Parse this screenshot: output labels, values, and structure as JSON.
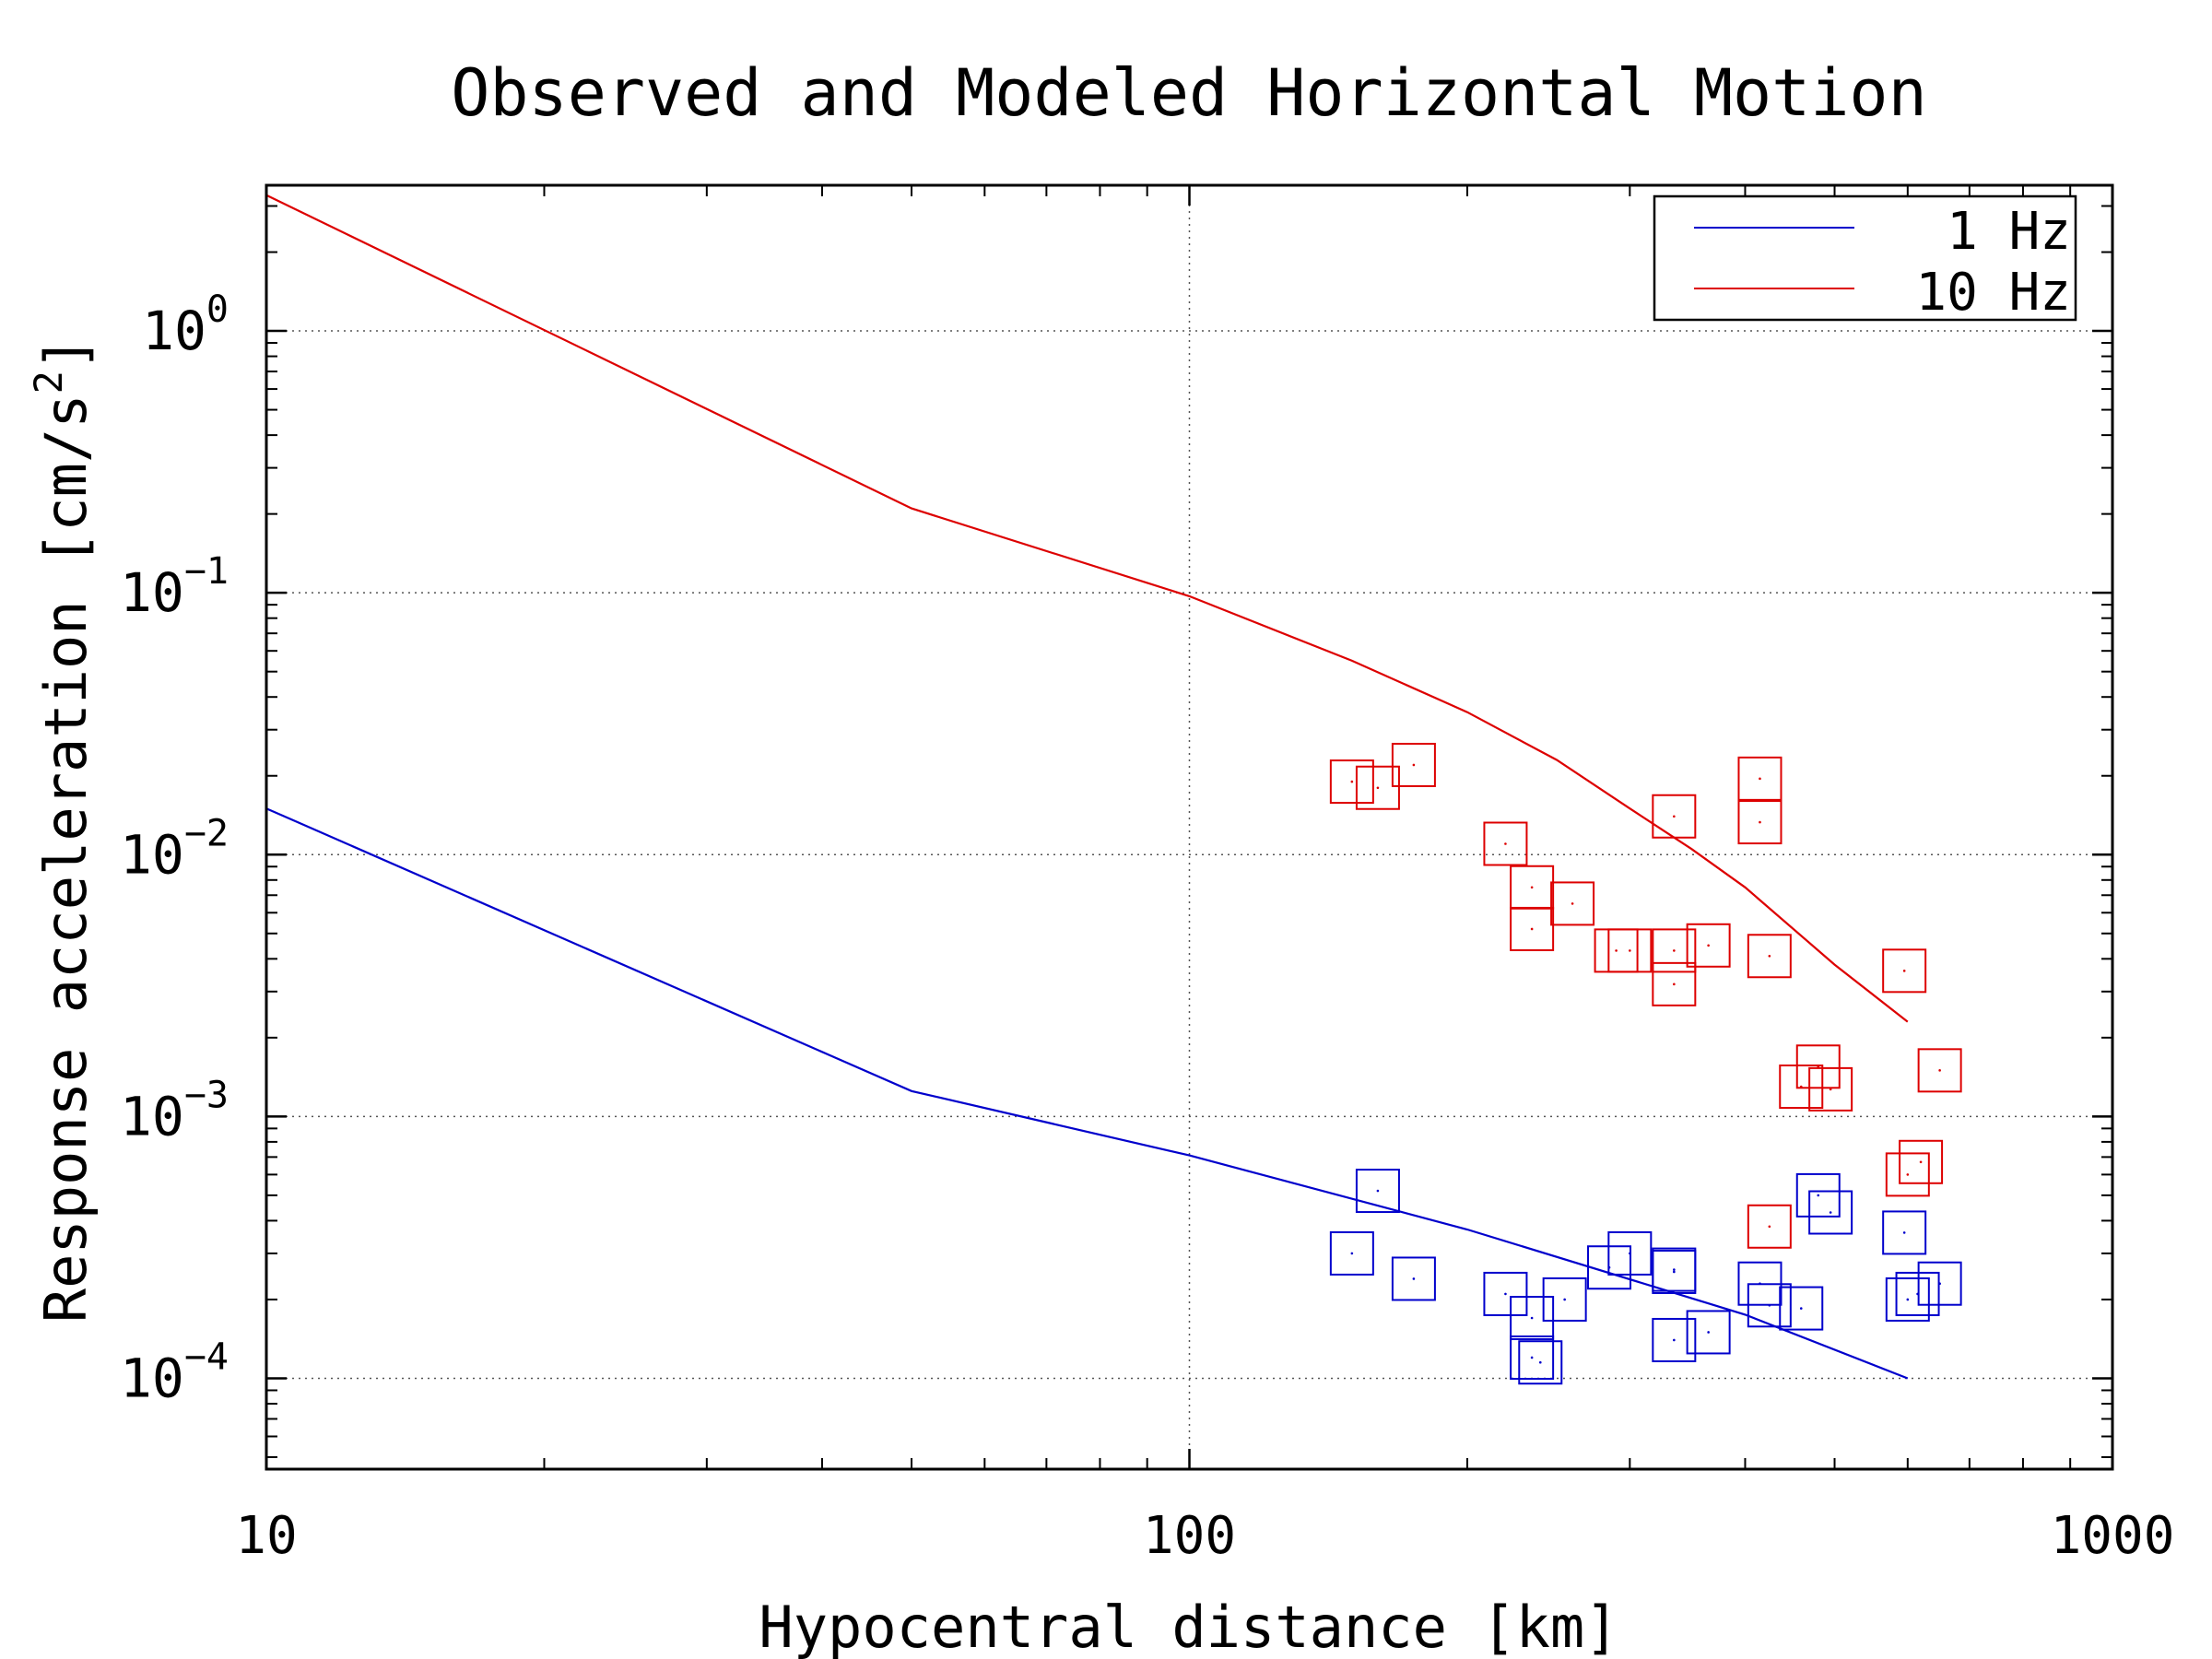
{
  "chart_data": {
    "type": "scatter",
    "title": "Observed and Modeled Horizontal Motion",
    "xlabel": "Hypocentral distance [km]",
    "ylabel": {
      "main": "Response acceleration [cm/s",
      "sup": "2",
      "end": "]"
    },
    "xscale": "log",
    "yscale": "log",
    "xlim": [
      10,
      1000
    ],
    "ylim": [
      4.5e-05,
      3.6
    ],
    "grid": true,
    "legend_position": "top-right",
    "x_ticks": [
      {
        "value": 10,
        "label": "10"
      },
      {
        "value": 100,
        "label": "100"
      },
      {
        "value": 1000,
        "label": "1000"
      }
    ],
    "y_ticks": [
      {
        "value": 1,
        "base": "10",
        "exp": "0"
      },
      {
        "value": 0.1,
        "base": "10",
        "exp": "-1"
      },
      {
        "value": 0.01,
        "base": "10",
        "exp": "-2"
      },
      {
        "value": 0.001,
        "base": "10",
        "exp": "-3"
      },
      {
        "value": 0.0001,
        "base": "10",
        "exp": "-4"
      }
    ],
    "series": [
      {
        "name": "1 Hz",
        "color": "#0000cc",
        "model": {
          "x": [
            10,
            50,
            100,
            200,
            400,
            600
          ],
          "y": [
            0.015,
            0.00125,
            0.00071,
            0.00037,
            0.000175,
            0.0001
          ]
        },
        "observed": {
          "x": [
            150,
            160,
            175,
            220,
            235,
            235,
            240,
            255,
            285,
            300,
            335,
            335,
            335,
            365,
            415,
            425,
            460,
            480,
            495,
            595,
            600,
            615,
            650
          ],
          "y": [
            0.0003,
            0.00052,
            0.00024,
            0.00021,
            0.00017,
            0.00012,
            0.000115,
            0.0002,
            0.000265,
            0.0003,
            0.00026,
            0.000255,
            0.00014,
            0.00015,
            0.00023,
            0.00019,
            0.000185,
            0.0005,
            0.00043,
            0.00036,
            0.0002,
            0.00021,
            0.00023
          ]
        }
      },
      {
        "name": "10 Hz",
        "color": "#dd0000",
        "model": {
          "x": [
            10,
            50,
            100,
            150,
            200,
            250,
            300,
            350,
            400,
            500,
            600
          ],
          "y": [
            3.3,
            0.21,
            0.097,
            0.055,
            0.035,
            0.023,
            0.015,
            0.0105,
            0.0075,
            0.0038,
            0.0023
          ]
        },
        "observed": {
          "x": [
            150,
            160,
            175,
            220,
            235,
            235,
            260,
            290,
            300,
            335,
            335,
            335,
            365,
            415,
            415,
            425,
            425,
            460,
            480,
            495,
            595,
            600,
            620,
            650
          ],
          "y": [
            0.019,
            0.018,
            0.022,
            0.011,
            0.0075,
            0.0052,
            0.0065,
            0.0043,
            0.0043,
            0.014,
            0.0043,
            0.0032,
            0.0045,
            0.0195,
            0.0133,
            0.0041,
            0.00038,
            0.0013,
            0.00155,
            0.00127,
            0.0036,
            0.0006,
            0.00067,
            0.0015
          ]
        }
      }
    ]
  }
}
